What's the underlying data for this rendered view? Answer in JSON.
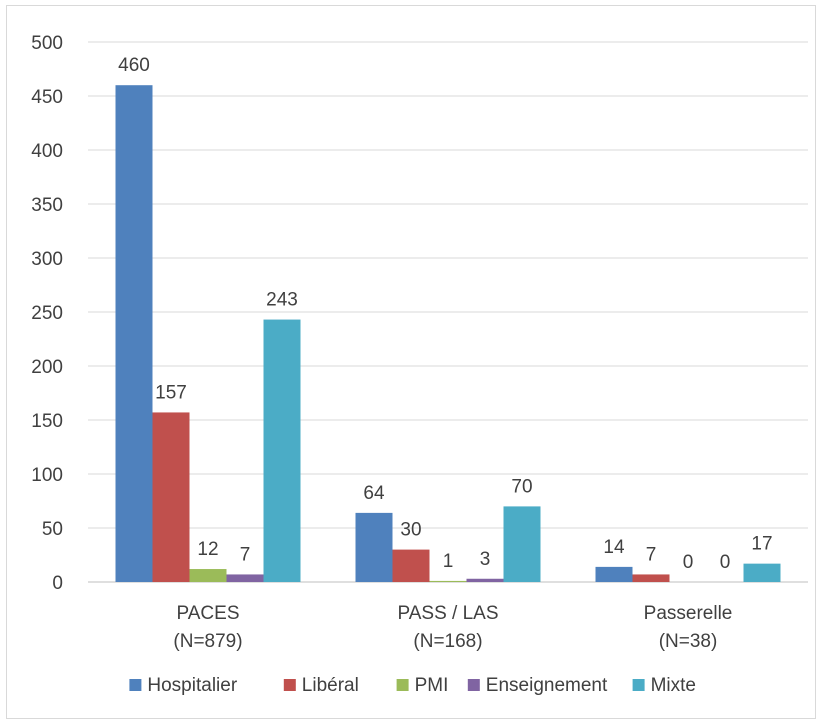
{
  "chart_data": {
    "type": "bar",
    "categories": [
      [
        "PACES",
        "(N=879)"
      ],
      [
        "PASS / LAS",
        "(N=168)"
      ],
      [
        "Passerelle",
        "(N=38)"
      ]
    ],
    "series": [
      {
        "name": "Hospitalier",
        "color": "#4f81bd",
        "values": [
          460,
          64,
          14
        ]
      },
      {
        "name": "Libéral",
        "color": "#c0504d",
        "values": [
          157,
          30,
          7
        ]
      },
      {
        "name": "PMI",
        "color": "#9bbb59",
        "values": [
          12,
          1,
          0
        ]
      },
      {
        "name": "Enseignement",
        "color": "#8064a2",
        "values": [
          7,
          3,
          0
        ]
      },
      {
        "name": "Mixte",
        "color": "#4bacc6",
        "values": [
          243,
          70,
          17
        ]
      }
    ],
    "ylim": [
      0,
      500
    ],
    "yticks": [
      0,
      50,
      100,
      150,
      200,
      250,
      300,
      350,
      400,
      450,
      500
    ],
    "grid": true,
    "legend": "bottom"
  }
}
